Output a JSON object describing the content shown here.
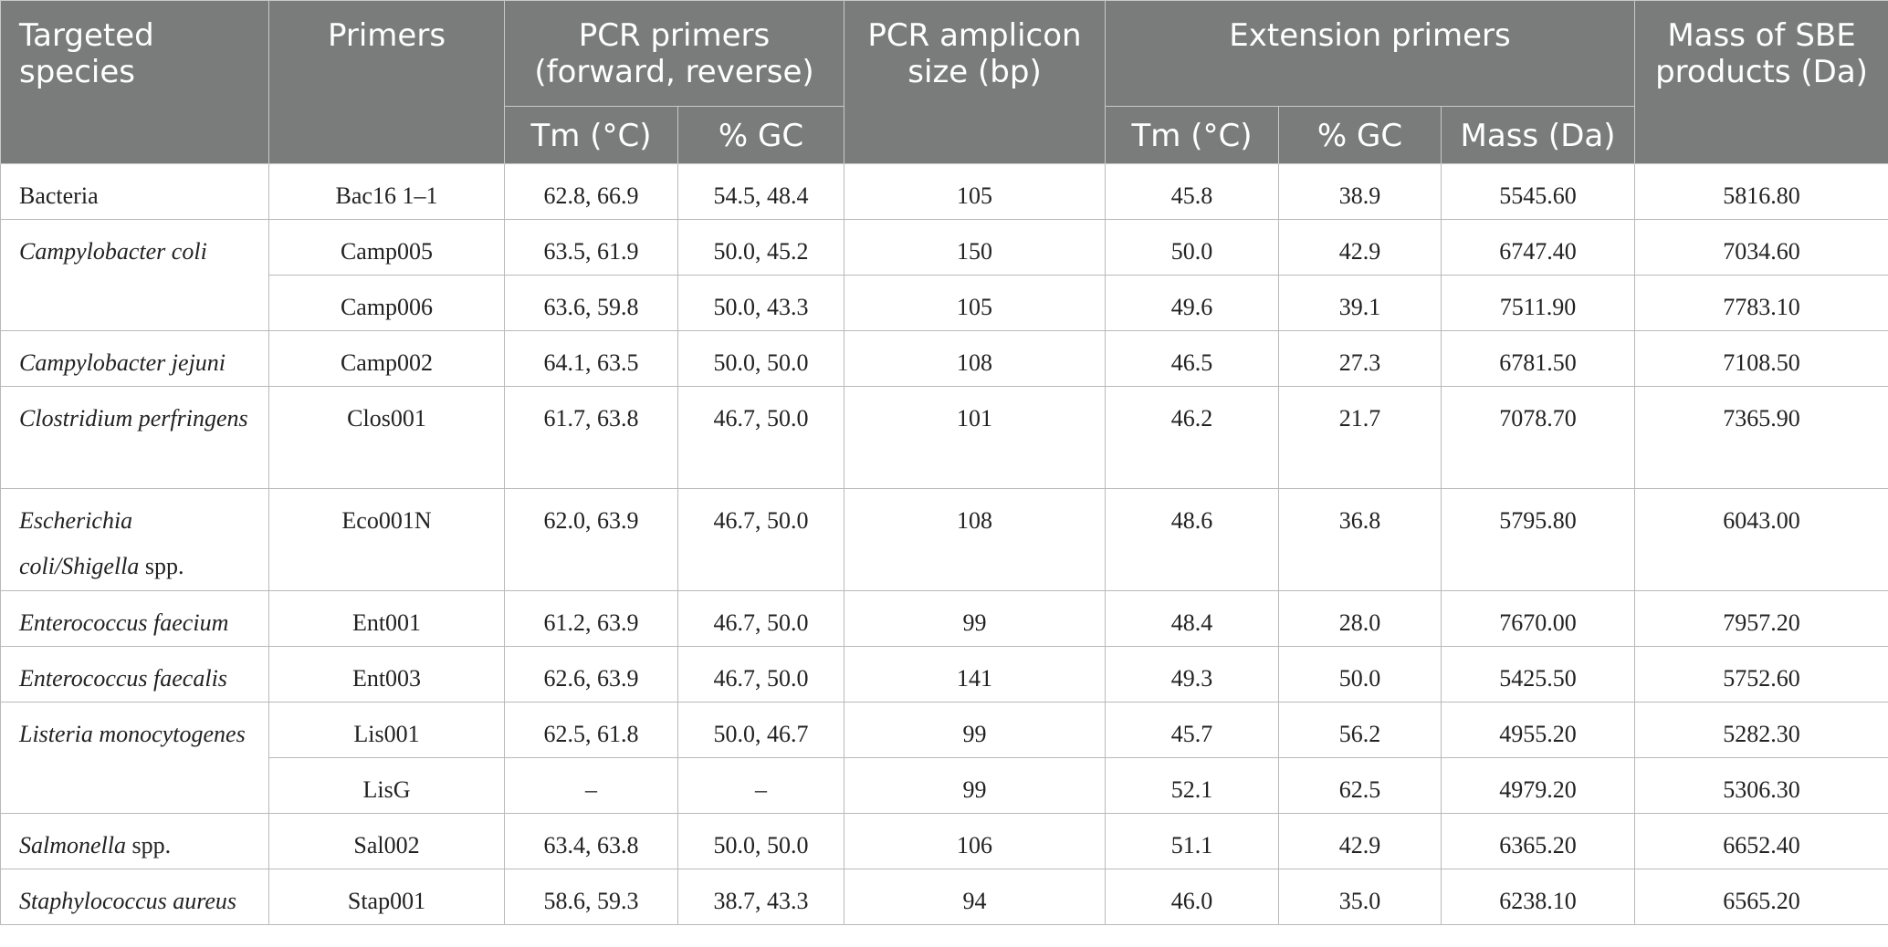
{
  "headers": {
    "targeted_species": "Targeted species",
    "primers": "Primers",
    "pcr_primers": "PCR primers (forward, reverse)",
    "pcr_amplicon_size": "PCR amplicon size (bp)",
    "extension_primers": "Extension primers",
    "mass_sbe": "Mass of SBE products (Da)",
    "tm": "Tm (°C)",
    "gc": "% GC",
    "mass": "Mass (Da)"
  },
  "rows": [
    {
      "species": "Bacteria",
      "species_italic": "",
      "species_suffix": "",
      "primer": "Bac16 1–1",
      "pcr_tm": "62.8, 66.9",
      "pcr_gc": "54.5, 48.4",
      "amplicon": "105",
      "ext_tm": "45.8",
      "ext_gc": "38.9",
      "ext_mass": "5545.60",
      "sbe_mass": "5816.80"
    },
    {
      "species": "",
      "species_italic": "Campylobacter coli",
      "species_suffix": "",
      "primer": "Camp005",
      "pcr_tm": "63.5, 61.9",
      "pcr_gc": "50.0, 45.2",
      "amplicon": "150",
      "ext_tm": "50.0",
      "ext_gc": "42.9",
      "ext_mass": "6747.40",
      "sbe_mass": "7034.60"
    },
    {
      "primer": "Camp006",
      "pcr_tm": "63.6, 59.8",
      "pcr_gc": "50.0, 43.3",
      "amplicon": "105",
      "ext_tm": "49.6",
      "ext_gc": "39.1",
      "ext_mass": "7511.90",
      "sbe_mass": "7783.10"
    },
    {
      "species": "",
      "species_italic": "Campylobacter jejuni",
      "species_suffix": "",
      "primer": "Camp002",
      "pcr_tm": "64.1, 63.5",
      "pcr_gc": "50.0, 50.0",
      "amplicon": "108",
      "ext_tm": "46.5",
      "ext_gc": "27.3",
      "ext_mass": "6781.50",
      "sbe_mass": "7108.50"
    },
    {
      "species": "",
      "species_italic": "Clostridium perfringens",
      "species_suffix": "",
      "primer": "Clos001",
      "pcr_tm": "61.7, 63.8",
      "pcr_gc": "46.7, 50.0",
      "amplicon": "101",
      "ext_tm": "46.2",
      "ext_gc": "21.7",
      "ext_mass": "7078.70",
      "sbe_mass": "7365.90"
    },
    {
      "species": "",
      "species_italic": "Escherichia coli/Shigella",
      "species_suffix": " spp.",
      "primer": "Eco001N",
      "pcr_tm": "62.0, 63.9",
      "pcr_gc": "46.7, 50.0",
      "amplicon": "108",
      "ext_tm": "48.6",
      "ext_gc": "36.8",
      "ext_mass": "5795.80",
      "sbe_mass": "6043.00"
    },
    {
      "species": "",
      "species_italic": "Enterococcus faecium",
      "species_suffix": "",
      "primer": "Ent001",
      "pcr_tm": "61.2, 63.9",
      "pcr_gc": "46.7, 50.0",
      "amplicon": "99",
      "ext_tm": "48.4",
      "ext_gc": "28.0",
      "ext_mass": "7670.00",
      "sbe_mass": "7957.20"
    },
    {
      "species": "",
      "species_italic": "Enterococcus faecalis",
      "species_suffix": "",
      "primer": "Ent003",
      "pcr_tm": "62.6, 63.9",
      "pcr_gc": "46.7, 50.0",
      "amplicon": "141",
      "ext_tm": "49.3",
      "ext_gc": "50.0",
      "ext_mass": "5425.50",
      "sbe_mass": "5752.60"
    },
    {
      "species": "",
      "species_italic": "Listeria monocytogenes",
      "species_suffix": "",
      "primer": "Lis001",
      "pcr_tm": "62.5, 61.8",
      "pcr_gc": "50.0, 46.7",
      "amplicon": "99",
      "ext_tm": "45.7",
      "ext_gc": "56.2",
      "ext_mass": "4955.20",
      "sbe_mass": "5282.30"
    },
    {
      "primer": "LisG",
      "pcr_tm": "–",
      "pcr_gc": "–",
      "amplicon": "99",
      "ext_tm": "52.1",
      "ext_gc": "62.5",
      "ext_mass": "4979.20",
      "sbe_mass": "5306.30"
    },
    {
      "species": "",
      "species_italic": "Salmonella",
      "species_suffix": " spp.",
      "primer": "Sal002",
      "pcr_tm": "63.4, 63.8",
      "pcr_gc": "50.0, 50.0",
      "amplicon": "106",
      "ext_tm": "51.1",
      "ext_gc": "42.9",
      "ext_mass": "6365.20",
      "sbe_mass": "6652.40"
    },
    {
      "species": "",
      "species_italic": "Staphylococcus aureus",
      "species_suffix": "",
      "primer": "Stap001",
      "pcr_tm": "58.6, 59.3",
      "pcr_gc": "38.7, 43.3",
      "amplicon": "94",
      "ext_tm": "46.0",
      "ext_gc": "35.0",
      "ext_mass": "6238.10",
      "sbe_mass": "6565.20"
    }
  ]
}
